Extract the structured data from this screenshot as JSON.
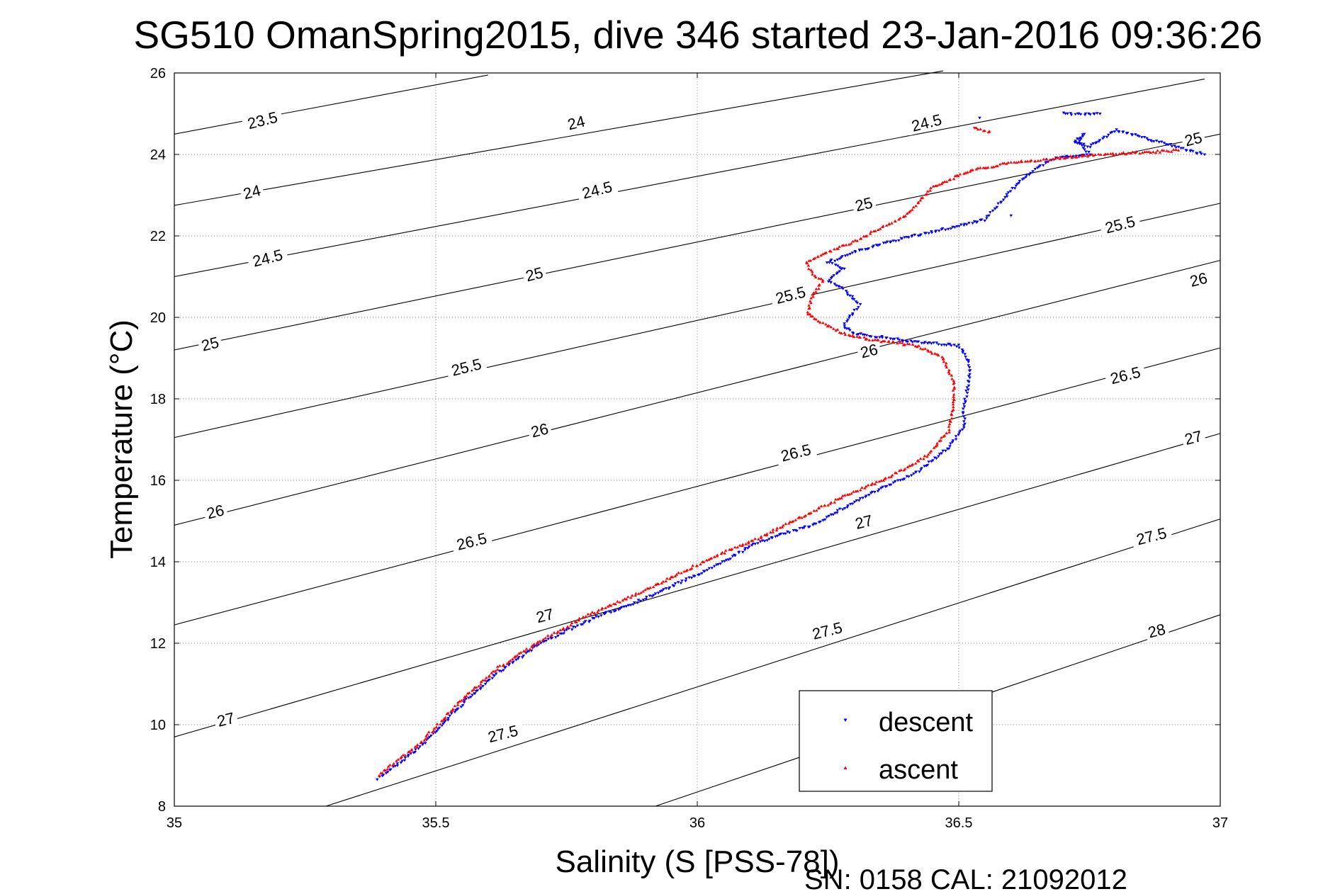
{
  "chart_data": {
    "type": "scatter",
    "title": "SG510 OmanSpring2015, dive 346 started 23-Jan-2016 09:36:26",
    "xlabel": "Salinity (S [PSS-78])",
    "ylabel": "Temperature (°C)",
    "xlim": [
      35,
      37
    ],
    "ylim": [
      8,
      26
    ],
    "xticks": [
      35,
      35.5,
      36,
      36.5,
      37
    ],
    "xtick_labels": [
      "35",
      "35.5",
      "36",
      "36.5",
      "37"
    ],
    "yticks": [
      8,
      10,
      12,
      14,
      16,
      18,
      20,
      22,
      24,
      26
    ],
    "ytick_labels": [
      "8",
      "10",
      "12",
      "14",
      "16",
      "18",
      "20",
      "22",
      "24",
      "26"
    ],
    "grid": true,
    "legend_position": "bottom-right",
    "density_contours": [
      {
        "label": "23.5",
        "points": [
          [
            35.0,
            24.5
          ],
          [
            35.6,
            25.95
          ]
        ],
        "label_at": [
          35.17,
          24.76
        ]
      },
      {
        "label": "24",
        "points": [
          [
            35.0,
            22.75
          ],
          [
            36.47,
            26.05
          ]
        ],
        "label_at": [
          35.15,
          23.0
        ]
      },
      {
        "label": "24",
        "points": [],
        "label_at": [
          35.77,
          24.7
        ]
      },
      {
        "label": "24.5",
        "points": [
          [
            35.0,
            21.0
          ],
          [
            36.97,
            25.85
          ]
        ],
        "label_at": [
          35.18,
          21.38
        ]
      },
      {
        "label": "24.5",
        "points": [],
        "label_at": [
          35.81,
          23.05
        ]
      },
      {
        "label": "24.5",
        "points": [],
        "label_at": [
          36.44,
          24.7
        ]
      },
      {
        "label": "25",
        "points": [
          [
            35.0,
            19.2
          ],
          [
            37.0,
            24.5
          ]
        ],
        "label_at": [
          35.07,
          19.27
        ]
      },
      {
        "label": "25",
        "points": [],
        "label_at": [
          35.69,
          20.98
        ]
      },
      {
        "label": "25",
        "points": [],
        "label_at": [
          36.32,
          22.7
        ]
      },
      {
        "label": "25",
        "points": [],
        "label_at": [
          36.95,
          24.3
        ]
      },
      {
        "label": "25.5",
        "points": [
          [
            35.0,
            17.05
          ],
          [
            37.0,
            22.8
          ]
        ],
        "label_at": [
          35.56,
          18.7
        ]
      },
      {
        "label": "25.5",
        "points": [],
        "label_at": [
          36.18,
          20.47
        ]
      },
      {
        "label": "25.5",
        "points": [],
        "label_at": [
          36.81,
          22.2
        ]
      },
      {
        "label": "26",
        "points": [
          [
            35.0,
            14.9
          ],
          [
            37.0,
            21.4
          ]
        ],
        "label_at": [
          35.08,
          15.15
        ]
      },
      {
        "label": "26",
        "points": [],
        "label_at": [
          35.7,
          17.15
        ]
      },
      {
        "label": "26",
        "points": [],
        "label_at": [
          36.33,
          19.1
        ]
      },
      {
        "label": "26",
        "points": [],
        "label_at": [
          36.96,
          20.85
        ]
      },
      {
        "label": "26.5",
        "points": [
          [
            35.0,
            12.45
          ],
          [
            37.0,
            19.25
          ]
        ],
        "label_at": [
          35.57,
          14.42
        ]
      },
      {
        "label": "26.5",
        "points": [],
        "label_at": [
          36.19,
          16.6
        ]
      },
      {
        "label": "26.5",
        "points": [],
        "label_at": [
          36.82,
          18.5
        ]
      },
      {
        "label": "27",
        "points": [
          [
            35.0,
            9.7
          ],
          [
            37.0,
            17.15
          ]
        ],
        "label_at": [
          35.1,
          10.05
        ]
      },
      {
        "label": "27",
        "points": [],
        "label_at": [
          35.71,
          12.6
        ]
      },
      {
        "label": "27",
        "points": [],
        "label_at": [
          36.32,
          14.9
        ]
      },
      {
        "label": "27",
        "points": [],
        "label_at": [
          36.95,
          16.97
        ]
      },
      {
        "label": "27.5",
        "points": [
          [
            35.29,
            8.0
          ],
          [
            37.0,
            15.05
          ]
        ],
        "label_at": [
          35.63,
          9.7
        ]
      },
      {
        "label": "27.5",
        "points": [],
        "label_at": [
          36.25,
          12.23
        ]
      },
      {
        "label": "27.5",
        "points": [],
        "label_at": [
          36.87,
          14.55
        ]
      },
      {
        "label": "28",
        "points": [
          [
            35.92,
            8.0
          ],
          [
            37.0,
            12.7
          ]
        ],
        "label_at": [
          36.88,
          12.23
        ]
      }
    ],
    "series": [
      {
        "name": "descent",
        "color": "#0000ff",
        "marker": "triangle-down",
        "path": [
          [
            35.39,
            8.68
          ],
          [
            35.47,
            9.45
          ],
          [
            35.55,
            10.5
          ],
          [
            35.62,
            11.3
          ],
          [
            35.7,
            12.0
          ],
          [
            35.8,
            12.6
          ],
          [
            35.9,
            13.1
          ],
          [
            36.02,
            13.8
          ],
          [
            36.12,
            14.5
          ],
          [
            36.22,
            14.9
          ],
          [
            36.32,
            15.6
          ],
          [
            36.42,
            16.2
          ],
          [
            36.48,
            16.8
          ],
          [
            36.51,
            17.3
          ],
          [
            36.51,
            17.8
          ],
          [
            36.52,
            18.5
          ],
          [
            36.52,
            18.9
          ],
          [
            36.5,
            19.3
          ],
          [
            36.42,
            19.4
          ],
          [
            36.36,
            19.5
          ],
          [
            36.3,
            19.6
          ],
          [
            36.28,
            19.8
          ],
          [
            36.31,
            20.3
          ],
          [
            36.28,
            20.7
          ],
          [
            36.25,
            20.9
          ],
          [
            36.28,
            21.2
          ],
          [
            36.25,
            21.35
          ],
          [
            36.3,
            21.6
          ],
          [
            36.38,
            21.9
          ],
          [
            36.45,
            22.1
          ],
          [
            36.55,
            22.4
          ],
          [
            36.62,
            23.4
          ],
          [
            36.68,
            23.9
          ],
          [
            36.75,
            24.0
          ],
          [
            36.73,
            24.3
          ],
          [
            36.74,
            24.5
          ],
          [
            36.72,
            24.3
          ],
          [
            36.75,
            24.2
          ],
          [
            36.8,
            24.6
          ],
          [
            36.97,
            24.0
          ],
          [
            36.7,
            25.0
          ],
          [
            36.77,
            25.0
          ],
          [
            36.54,
            24.9
          ],
          [
            36.6,
            22.5
          ]
        ]
      },
      {
        "name": "ascent",
        "color": "#ff0000",
        "marker": "triangle-up",
        "path": [
          [
            35.39,
            8.75
          ],
          [
            35.47,
            9.55
          ],
          [
            35.55,
            10.6
          ],
          [
            35.62,
            11.4
          ],
          [
            35.7,
            12.05
          ],
          [
            35.78,
            12.62
          ],
          [
            35.9,
            13.3
          ],
          [
            36.02,
            14.05
          ],
          [
            36.12,
            14.6
          ],
          [
            36.2,
            15.1
          ],
          [
            36.28,
            15.6
          ],
          [
            36.37,
            16.1
          ],
          [
            36.44,
            16.6
          ],
          [
            36.48,
            17.2
          ],
          [
            36.49,
            17.8
          ],
          [
            36.49,
            18.4
          ],
          [
            36.47,
            19.0
          ],
          [
            36.42,
            19.3
          ],
          [
            36.33,
            19.45
          ],
          [
            36.28,
            19.6
          ],
          [
            36.24,
            19.85
          ],
          [
            36.21,
            20.1
          ],
          [
            36.22,
            20.5
          ],
          [
            36.24,
            20.9
          ],
          [
            36.22,
            21.05
          ],
          [
            36.21,
            21.35
          ],
          [
            36.24,
            21.55
          ],
          [
            36.29,
            21.8
          ],
          [
            36.33,
            22.05
          ],
          [
            36.4,
            22.5
          ],
          [
            36.45,
            23.2
          ],
          [
            36.52,
            23.6
          ],
          [
            36.6,
            23.8
          ],
          [
            36.67,
            23.88
          ],
          [
            36.73,
            23.95
          ],
          [
            36.75,
            23.97
          ],
          [
            36.92,
            24.1
          ],
          [
            36.56,
            24.55
          ],
          [
            36.53,
            24.65
          ]
        ]
      }
    ]
  },
  "legend": {
    "items": [
      {
        "label": "descent",
        "color": "#0000ff",
        "marker": "triangle-down"
      },
      {
        "label": "ascent",
        "color": "#ff0000",
        "marker": "triangle-up"
      }
    ]
  },
  "footer": {
    "sn_cal": "SN: 0158  CAL: 21092012"
  }
}
